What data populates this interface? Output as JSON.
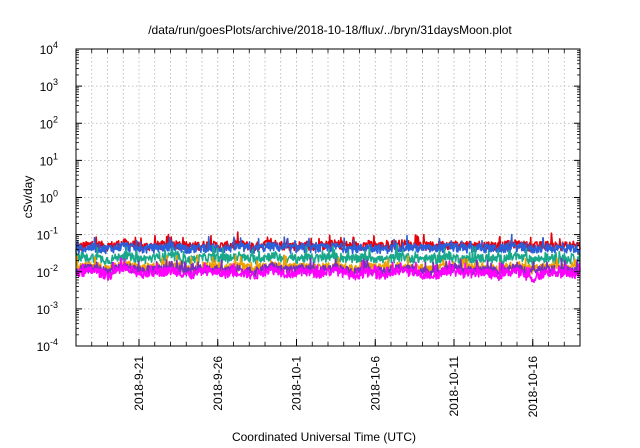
{
  "chart_data": {
    "type": "line",
    "title": "/data/run/goesPlots/archive/2018-10-18/flux/../bryn/31daysMoon.plot",
    "xlabel": "Coordinated Universal Time (UTC)",
    "ylabel": "cSv/day",
    "yscale": "log",
    "ylim_exponents": [
      -4,
      4
    ],
    "y_tick_base": "10",
    "y_tick_exponents": [
      "-4",
      "-3",
      "-2",
      "-1",
      "0",
      "1",
      "2",
      "3",
      "4"
    ],
    "xlim": [
      "2018-09-17",
      "2018-10-19"
    ],
    "x_ticks": [
      "2018-9-21",
      "2018-9-26",
      "2018-10-1",
      "2018-10-6",
      "2018-10-11",
      "2018-10-16"
    ],
    "grid": true,
    "series": [
      {
        "color": "#e8000b",
        "level": 0.045,
        "values": [
          0.045,
          0.055,
          0.05,
          0.06,
          0.047,
          0.052,
          0.058,
          0.049,
          0.054,
          0.05,
          0.056,
          0.048,
          0.06,
          0.05,
          0.053,
          0.051,
          0.057,
          0.05,
          0.055,
          0.049,
          0.058,
          0.052,
          0.05,
          0.056,
          0.051,
          0.054,
          0.05,
          0.057,
          0.049,
          0.053,
          0.05,
          0.052
        ]
      },
      {
        "color": "#2b5fd9",
        "level": 0.04,
        "values": [
          0.04,
          0.046,
          0.042,
          0.05,
          0.041,
          0.045,
          0.048,
          0.042,
          0.046,
          0.043,
          0.047,
          0.041,
          0.05,
          0.043,
          0.045,
          0.044,
          0.048,
          0.042,
          0.046,
          0.041,
          0.049,
          0.044,
          0.042,
          0.047,
          0.043,
          0.045,
          0.042,
          0.048,
          0.041,
          0.045,
          0.043,
          0.044
        ]
      },
      {
        "color": "#1aa88a",
        "level": 0.022,
        "values": [
          0.022,
          0.025,
          0.021,
          0.027,
          0.022,
          0.024,
          0.026,
          0.021,
          0.025,
          0.023,
          0.025,
          0.022,
          0.027,
          0.022,
          0.024,
          0.023,
          0.026,
          0.022,
          0.025,
          0.021,
          0.026,
          0.023,
          0.022,
          0.025,
          0.022,
          0.024,
          0.022,
          0.026,
          0.021,
          0.024,
          0.022,
          0.023
        ]
      },
      {
        "color": "#f0a000",
        "level": 0.013,
        "values": [
          0.013,
          0.015,
          0.012,
          0.016,
          0.013,
          0.014,
          0.015,
          0.012,
          0.015,
          0.013,
          0.014,
          0.012,
          0.016,
          0.013,
          0.014,
          0.013,
          0.015,
          0.012,
          0.014,
          0.012,
          0.015,
          0.013,
          0.012,
          0.015,
          0.013,
          0.014,
          0.012,
          0.015,
          0.012,
          0.014,
          0.013,
          0.013
        ]
      },
      {
        "color": "#7b2fbf",
        "level": 0.011,
        "values": [
          0.011,
          0.013,
          0.01,
          0.014,
          0.011,
          0.012,
          0.013,
          0.01,
          0.013,
          0.011,
          0.012,
          0.01,
          0.014,
          0.011,
          0.012,
          0.011,
          0.013,
          0.01,
          0.012,
          0.01,
          0.013,
          0.011,
          0.01,
          0.013,
          0.011,
          0.012,
          0.01,
          0.013,
          0.01,
          0.012,
          0.011,
          0.011
        ]
      },
      {
        "color": "#ff00ff",
        "level": 0.009,
        "values": [
          0.009,
          0.011,
          0.008,
          0.012,
          0.009,
          0.01,
          0.011,
          0.008,
          0.011,
          0.009,
          0.01,
          0.008,
          0.012,
          0.009,
          0.01,
          0.009,
          0.011,
          0.008,
          0.01,
          0.008,
          0.011,
          0.009,
          0.008,
          0.011,
          0.009,
          0.01,
          0.008,
          0.011,
          0.006,
          0.01,
          0.009,
          0.009
        ]
      }
    ]
  }
}
